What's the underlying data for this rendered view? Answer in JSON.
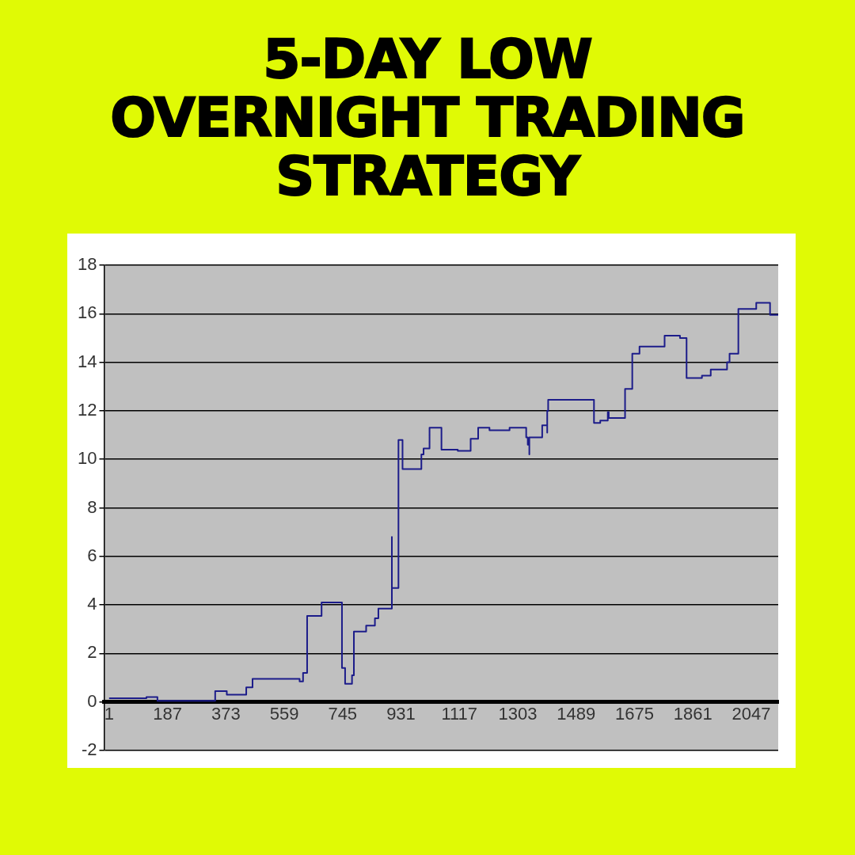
{
  "chart_data": {
    "type": "step",
    "title": "5-DAY LOW\nOVERNIGHT TRADING\nSTRATEGY",
    "x": [
      1,
      120,
      155,
      339,
      376,
      438,
      458,
      608,
      619,
      632,
      678,
      743,
      753,
      775,
      781,
      820,
      848,
      859,
      902,
      902,
      923,
      936,
      996,
      1003,
      1022,
      1060,
      1112,
      1153,
      1177,
      1213,
      1277,
      1330,
      1335,
      1340,
      1340,
      1381,
      1397,
      1397,
      1400,
      1546,
      1566,
      1590,
      1593,
      1645,
      1668,
      1691,
      1771,
      1820,
      1841,
      1890,
      1918,
      1970,
      1978,
      2006,
      2063,
      2107,
      2133
    ],
    "values": [
      0.15,
      0.2,
      0.05,
      0.45,
      0.3,
      0.6,
      0.95,
      0.85,
      1.2,
      3.55,
      4.1,
      1.4,
      0.75,
      1.1,
      2.9,
      3.15,
      3.45,
      3.85,
      6.8,
      4.7,
      10.8,
      9.6,
      10.2,
      10.45,
      11.3,
      10.4,
      10.35,
      10.85,
      11.3,
      11.2,
      11.3,
      10.9,
      10.6,
      10.2,
      10.9,
      11.4,
      11.1,
      12.0,
      12.45,
      11.5,
      11.6,
      11.95,
      11.7,
      12.9,
      14.35,
      14.65,
      15.1,
      15.0,
      13.35,
      13.45,
      13.7,
      14.0,
      14.35,
      16.2,
      16.45,
      15.95,
      15.95
    ],
    "color": "#1c1c8a",
    "xlim": [
      -15,
      2133
    ],
    "xticks": [
      1,
      187,
      373,
      559,
      745,
      931,
      1117,
      1303,
      1489,
      1675,
      1861,
      2047
    ],
    "ylim": [
      -2,
      18
    ],
    "yticks": [
      -2,
      0,
      2,
      4,
      6,
      8,
      10,
      12,
      14,
      16,
      18
    ],
    "grid": "y"
  }
}
